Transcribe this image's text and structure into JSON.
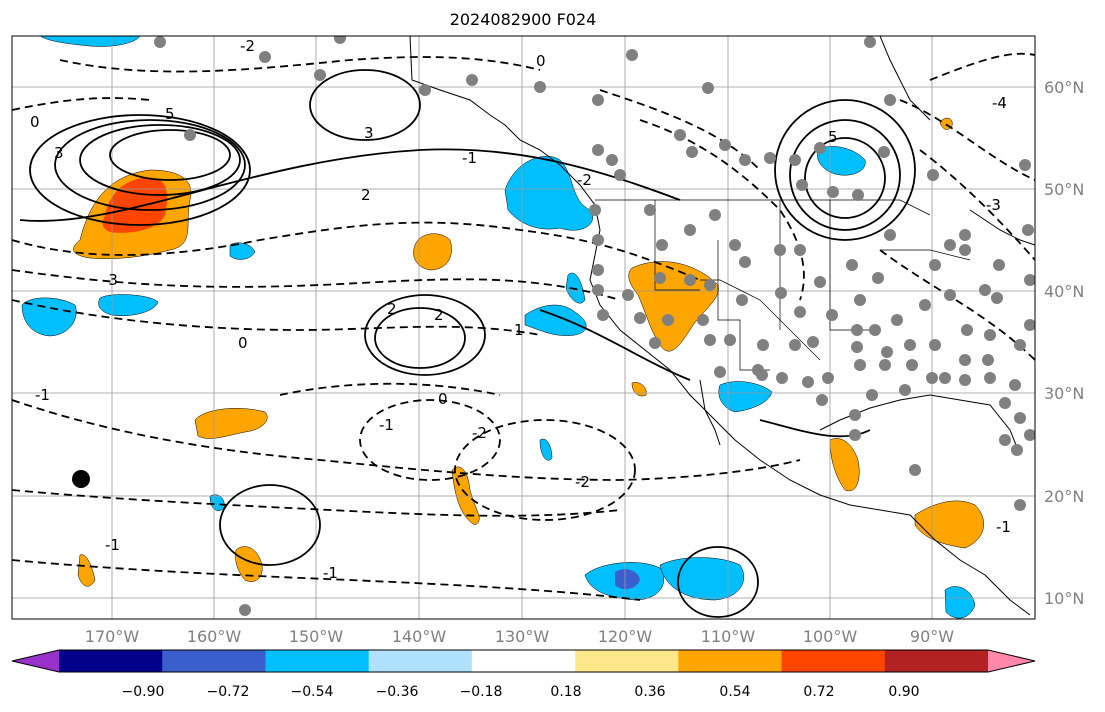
{
  "title": "2024082900 F024",
  "lon_labels": [
    "170°W",
    "160°W",
    "150°W",
    "140°W",
    "130°W",
    "120°W",
    "110°W",
    "100°W",
    "90°W"
  ],
  "lat_labels": [
    "60°N",
    "50°N",
    "40°N",
    "30°N",
    "20°N",
    "10°N"
  ],
  "colorbar": {
    "tick_labels": [
      "−0.90",
      "−0.72",
      "−0.54",
      "−0.36",
      "−0.18",
      "0.18",
      "0.36",
      "0.54",
      "0.72",
      "0.90"
    ],
    "colors": [
      "#9932cc",
      "#00008b",
      "#3a5fcd",
      "#00bfff",
      "#b0e2ff",
      "#ffffff",
      "#ffe88a",
      "#ffa500",
      "#ff4500",
      "#b22222",
      "#ff88aa"
    ]
  },
  "contour_labels": [
    "5",
    "3",
    "2",
    "0",
    "-3",
    "-2",
    "3",
    "5",
    "0",
    "2",
    "-1",
    "-2",
    "2",
    "1",
    "-1",
    "0",
    "-1",
    "-2",
    "0",
    "-1",
    "-4",
    "-3",
    "-1",
    "-2",
    "-1"
  ],
  "colors": {
    "positive_fill": "#ffa500",
    "strong_positive_fill": "#ff4500",
    "negative_fill": "#00bfff",
    "strong_negative_fill": "#3a5fcd",
    "station_dot": "#808080",
    "grid": "#999999"
  }
}
